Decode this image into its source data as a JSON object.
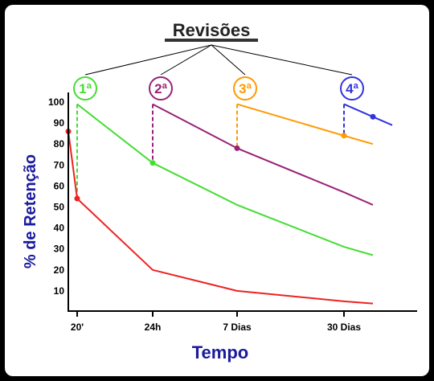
{
  "chart_data": {
    "type": "line",
    "title": "Revisões",
    "xlabel": "Tempo",
    "ylabel": "% de Retenção",
    "ylim": [
      0,
      100
    ],
    "yticks": [
      10,
      20,
      30,
      40,
      50,
      60,
      70,
      80,
      90,
      100
    ],
    "xticks": [
      "20'",
      "24h",
      "7 Dias",
      "30 Dias"
    ],
    "grid": false,
    "revisions": [
      {
        "label": "1ª",
        "color": "#44dd33"
      },
      {
        "label": "2ª",
        "color": "#992277"
      },
      {
        "label": "3ª",
        "color": "#ff9900"
      },
      {
        "label": "4ª",
        "color": "#3333dd"
      }
    ],
    "series": [
      {
        "color": "#ee2222",
        "values": [
          [
            0,
            86
          ],
          [
            1,
            54
          ],
          [
            2,
            20
          ],
          [
            3,
            10
          ],
          [
            4,
            5
          ],
          [
            4.6,
            4
          ]
        ]
      },
      {
        "color": "#44dd33",
        "values": [
          [
            1,
            99
          ],
          [
            2,
            71
          ],
          [
            3,
            51
          ],
          [
            4,
            31
          ],
          [
            4.6,
            27
          ]
        ]
      },
      {
        "color": "#992277",
        "values": [
          [
            2,
            99
          ],
          [
            3,
            78
          ],
          [
            4,
            57
          ],
          [
            4.6,
            51
          ]
        ]
      },
      {
        "color": "#ff9900",
        "values": [
          [
            3,
            99
          ],
          [
            4,
            84
          ],
          [
            4.6,
            80
          ]
        ]
      },
      {
        "color": "#3333dd",
        "values": [
          [
            4,
            99
          ],
          [
            4.6,
            93
          ],
          [
            5,
            89
          ]
        ]
      }
    ]
  }
}
